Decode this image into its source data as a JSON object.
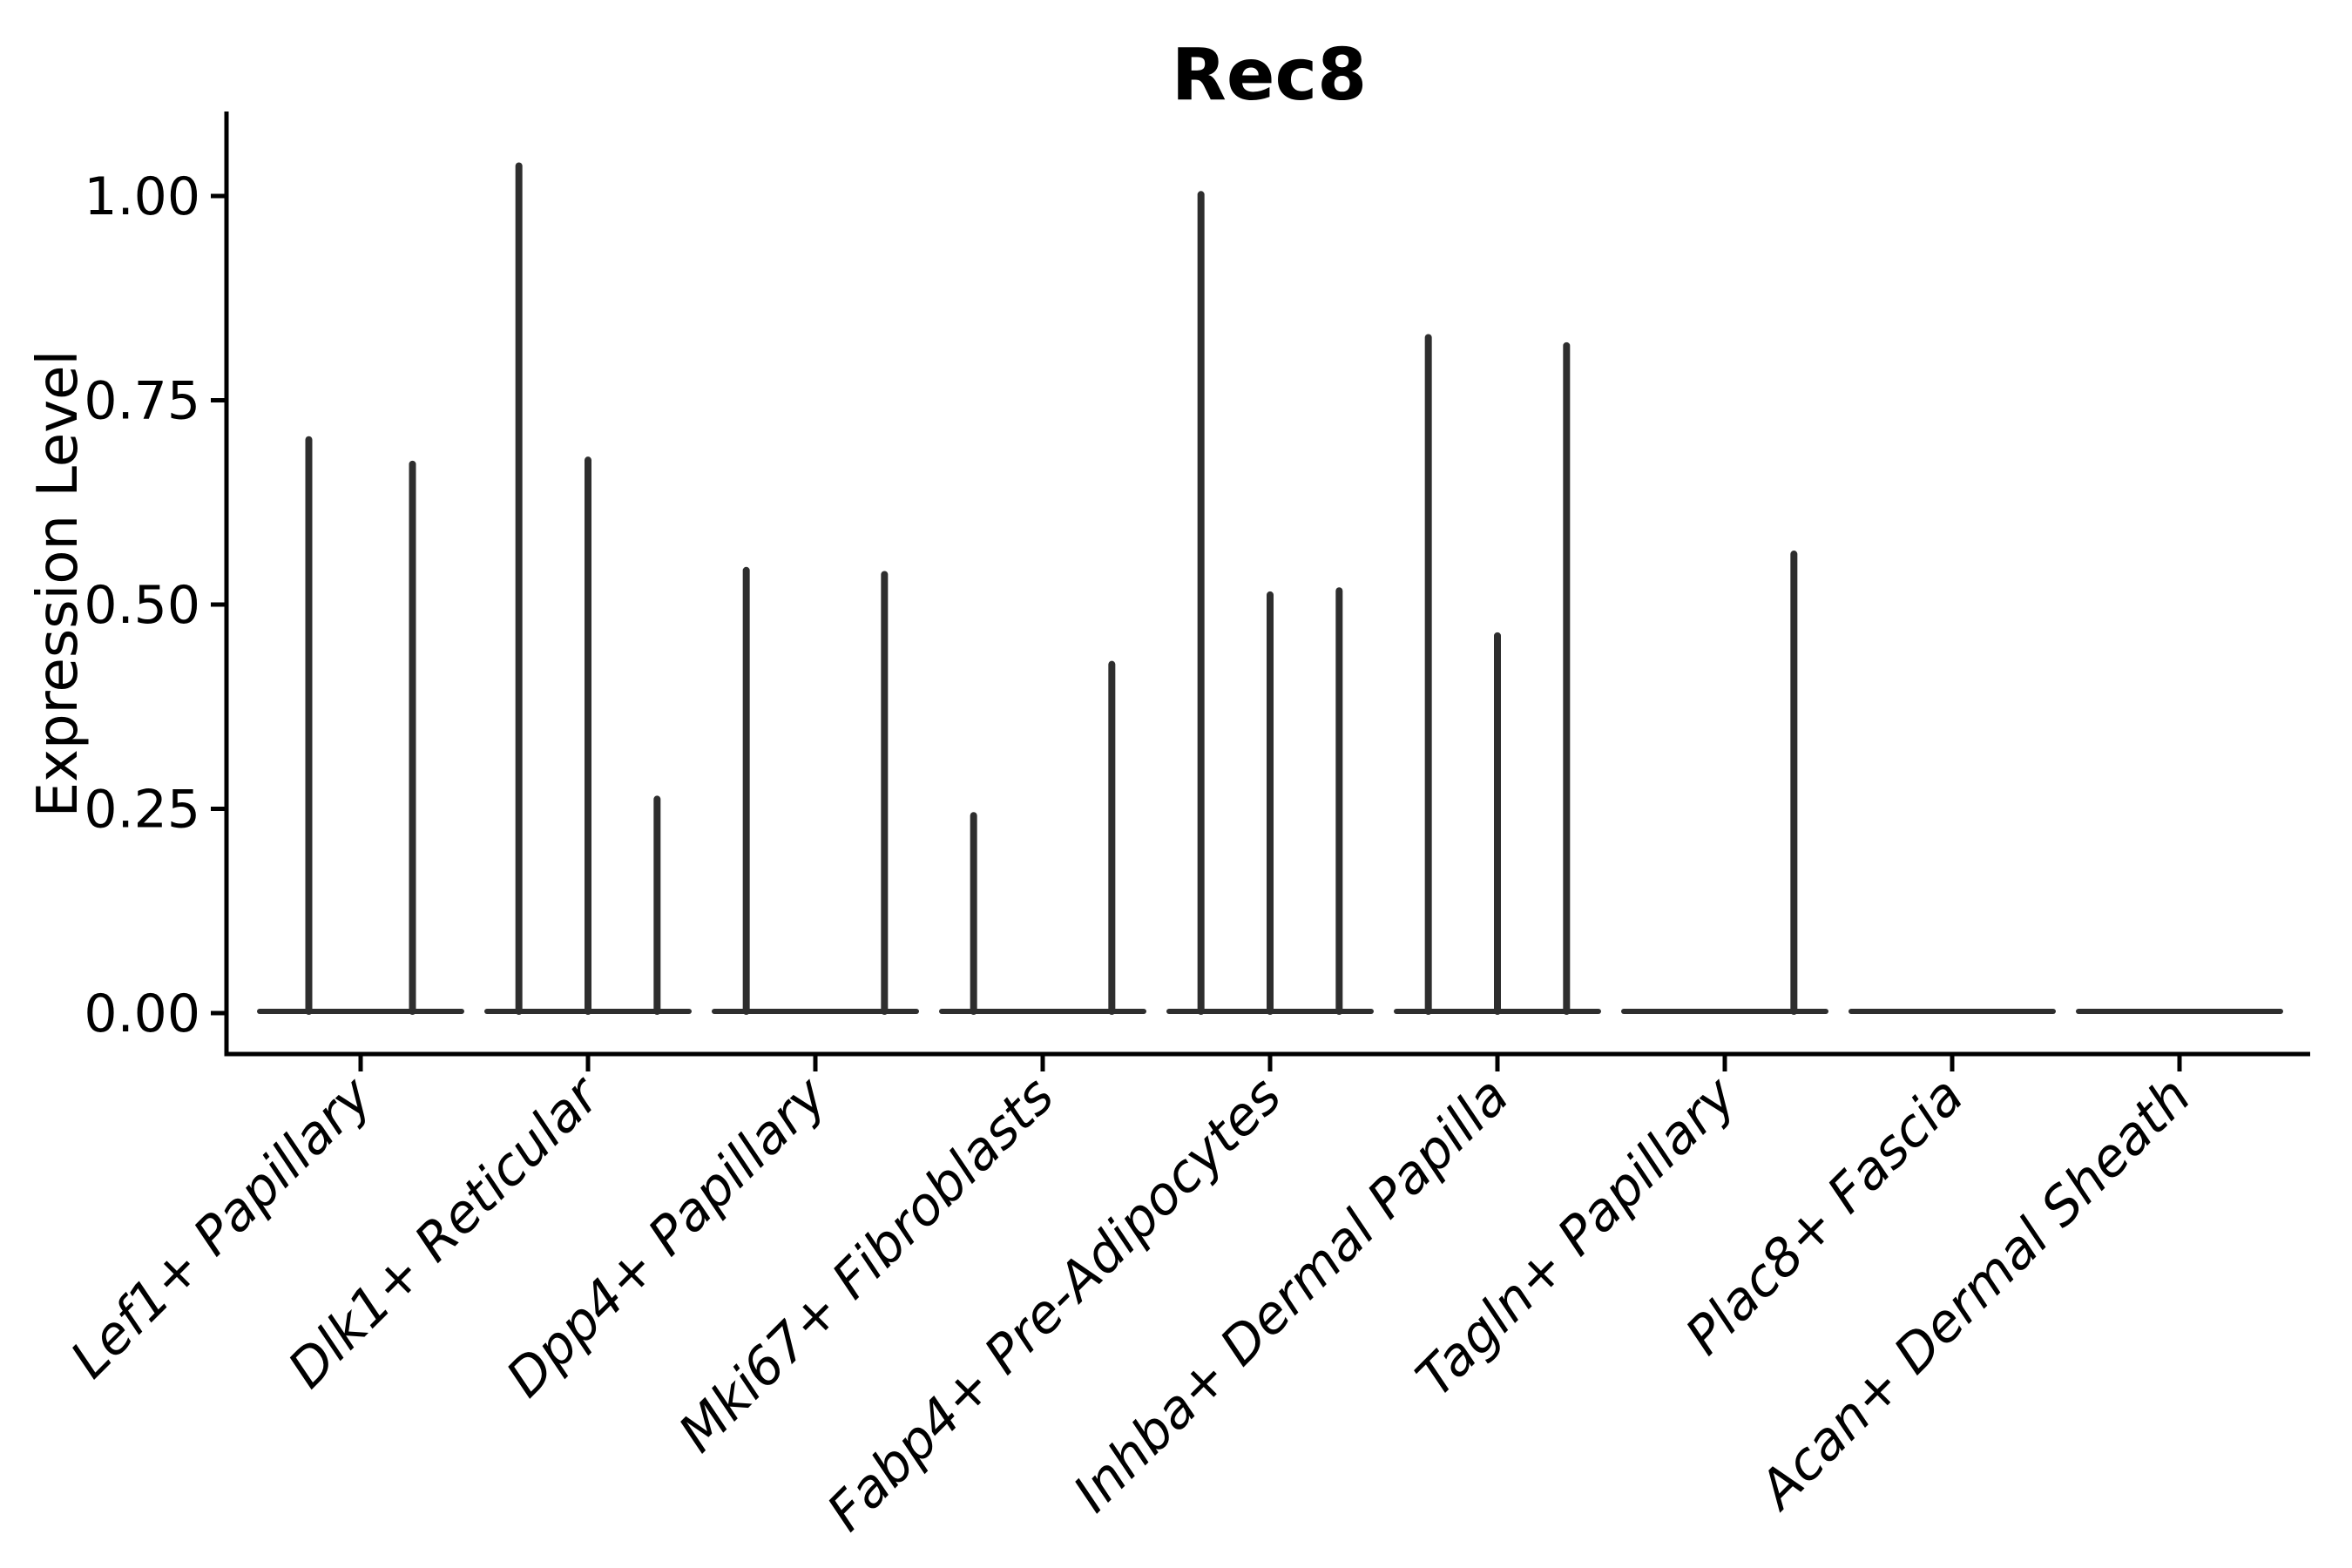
{
  "chart_data": {
    "type": "violin",
    "title": "Rec8",
    "xlabel": "",
    "ylabel": "Expression Level",
    "background": "#ffffff",
    "grid": false,
    "legend": null,
    "ylim": [
      -0.05,
      1.1
    ],
    "yticks": [
      {
        "value": 0.0,
        "label": "0.00"
      },
      {
        "value": 0.25,
        "label": "0.25"
      },
      {
        "value": 0.5,
        "label": "0.50"
      },
      {
        "value": 0.75,
        "label": "0.75"
      },
      {
        "value": 1.0,
        "label": "1.00"
      }
    ],
    "categories": [
      "Lef1+ Papillary",
      "Dlk1+ Reticular",
      "Dpp4+ Papillary",
      "Mki67+ Fibroblasts",
      "Fabp4+ Pre-Adipocytes",
      "Inhba+ Dermal Papilla",
      "Tagln+ Papillary",
      "Plac8+ Fascia",
      "Acan+ Dermal Sheath"
    ],
    "groups": [
      {
        "label": "Lef1+ Papillary",
        "violin_max": [
          0.705,
          0.675
        ]
      },
      {
        "label": "Dlk1+ Reticular",
        "violin_max": [
          1.04,
          0.68,
          0.265
        ]
      },
      {
        "label": "Dpp4+ Papillary",
        "violin_max": [
          0.545,
          0,
          0.54
        ]
      },
      {
        "label": "Mki67+ Fibroblasts",
        "violin_max": [
          0.245,
          0,
          0.43
        ]
      },
      {
        "label": "Fabp4+ Pre-Adipocytes",
        "violin_max": [
          1.005,
          0.515,
          0.52
        ]
      },
      {
        "label": "Inhba+ Dermal Papilla",
        "violin_max": [
          0.83,
          0.465,
          0.82
        ]
      },
      {
        "label": "Tagln+ Papillary",
        "violin_max": [
          0,
          0,
          0.565
        ]
      },
      {
        "label": "Plac8+ Fascia",
        "violin_max": [
          0,
          0,
          0
        ]
      },
      {
        "label": "Acan+ Dermal Sheath",
        "violin_max": [
          0,
          0,
          0
        ]
      }
    ],
    "colors": {
      "violin_stroke": "#2e2e2e",
      "axis": "#000000",
      "text": "#000000"
    }
  }
}
